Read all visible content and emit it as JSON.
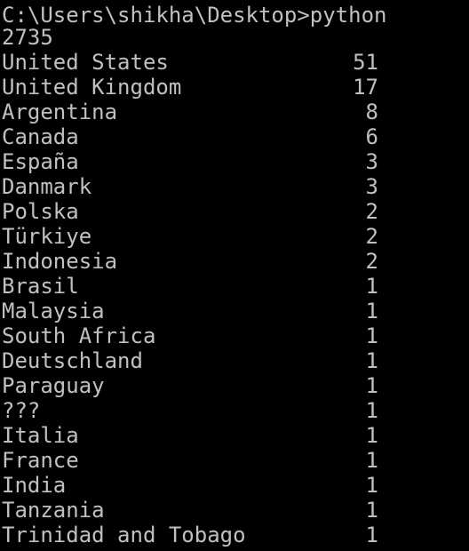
{
  "console": {
    "prompt": "C:\\Users\\shikha\\Desktop>python",
    "total": "2735",
    "colors": {
      "background": "#000000",
      "text": "#c0c0c0"
    },
    "rows": [
      {
        "country": "United States",
        "count": "51"
      },
      {
        "country": "United Kingdom",
        "count": "17"
      },
      {
        "country": "Argentina",
        "count": "8"
      },
      {
        "country": "Canada",
        "count": "6"
      },
      {
        "country": "España",
        "count": "3"
      },
      {
        "country": "Danmark",
        "count": "3"
      },
      {
        "country": "Polska",
        "count": "2"
      },
      {
        "country": "Türkiye",
        "count": "2"
      },
      {
        "country": "Indonesia",
        "count": "2"
      },
      {
        "country": "Brasil",
        "count": "1"
      },
      {
        "country": "Malaysia",
        "count": "1"
      },
      {
        "country": "South Africa",
        "count": "1"
      },
      {
        "country": "Deutschland",
        "count": "1"
      },
      {
        "country": "Paraguay",
        "count": "1"
      },
      {
        "country": "???",
        "count": "1"
      },
      {
        "country": "Italia",
        "count": "1"
      },
      {
        "country": "France",
        "count": "1"
      },
      {
        "country": "India",
        "count": "1"
      },
      {
        "country": "Tanzania",
        "count": "1"
      },
      {
        "country": "Trinidad and Tobago",
        "count": "1"
      }
    ]
  }
}
